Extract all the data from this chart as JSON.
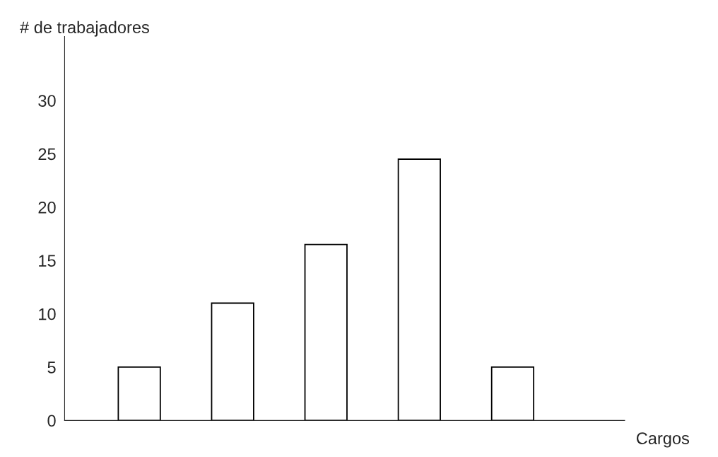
{
  "chart_data": {
    "type": "bar",
    "xlabel": "Cargos",
    "ylabel": "# de trabajadores",
    "categories": [
      null,
      null,
      null,
      null,
      null
    ],
    "values": [
      5,
      11,
      16.5,
      24.5,
      5
    ],
    "color": "#ffffff",
    "ylim": [
      0,
      36
    ],
    "yticks": [
      0,
      5,
      10,
      15,
      20,
      25,
      30
    ],
    "grid": false
  }
}
